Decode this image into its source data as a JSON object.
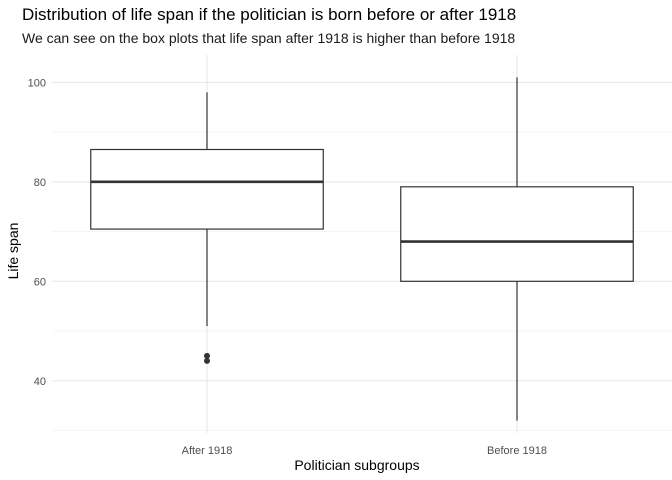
{
  "chart_data": {
    "type": "boxplot",
    "title": "Distribution of life span if the politician is born before or after 1918",
    "subtitle": "We can see on the box plots that life span after 1918 is higher than before 1918",
    "xlabel": "Politician subgroups",
    "ylabel": "Life span",
    "ylim": [
      29.5,
      105.5
    ],
    "yticks": [
      40,
      60,
      80,
      100
    ],
    "grid": true,
    "categories": [
      "After 1918",
      "Before 1918"
    ],
    "boxes": [
      {
        "category": "After 1918",
        "whisker_low": 51,
        "q1": 70.5,
        "median": 80,
        "q3": 86.5,
        "whisker_high": 98,
        "outliers": [
          44,
          45
        ]
      },
      {
        "category": "Before 1918",
        "whisker_low": 32,
        "q1": 60,
        "median": 68,
        "q3": 79,
        "whisker_high": 101,
        "outliers": []
      }
    ]
  }
}
